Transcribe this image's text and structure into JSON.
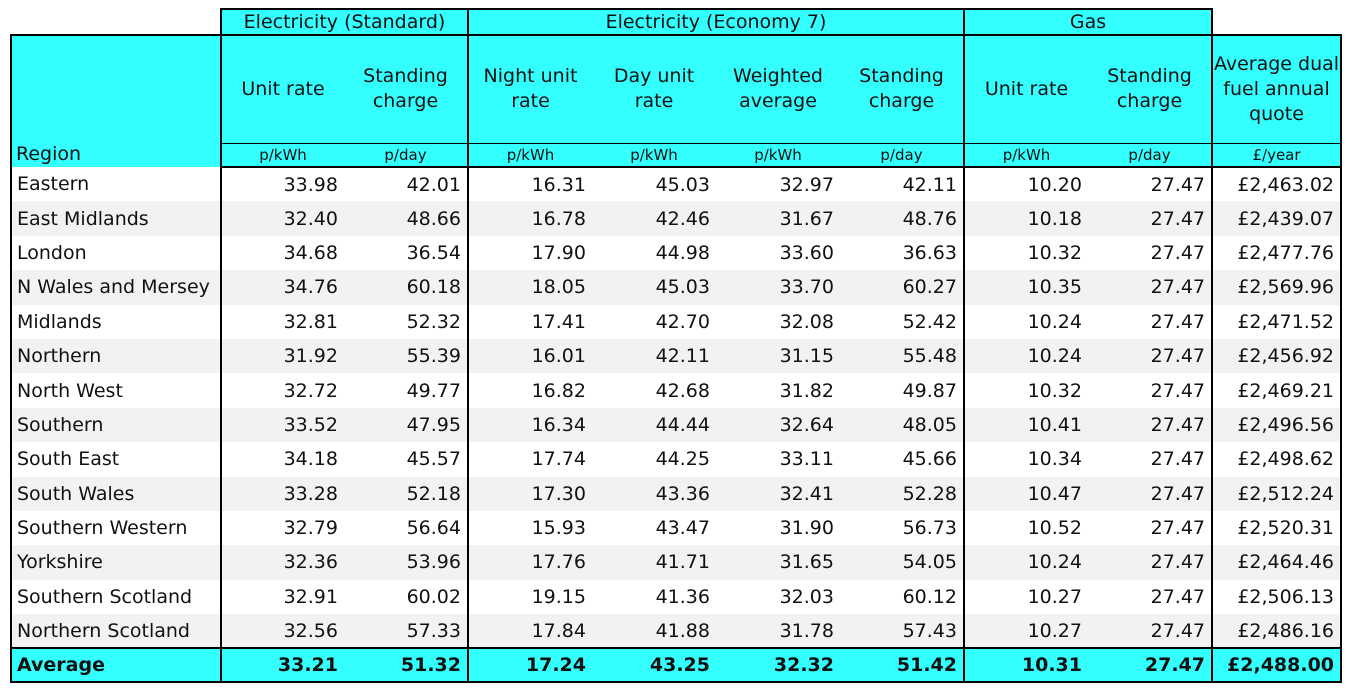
{
  "groups": {
    "standard": "Electricity (Standard)",
    "economy7": "Electricity (Economy 7)",
    "gas": "Gas"
  },
  "columns": {
    "region": "Region",
    "std_unit": "Unit rate",
    "std_standing": "Standing charge",
    "e7_night": "Night unit rate",
    "e7_day": "Day unit rate",
    "e7_weighted": "Weighted average",
    "e7_standing": "Standing charge",
    "gas_unit": "Unit rate",
    "gas_standing": "Standing charge",
    "dual_fuel": "Average dual fuel annual quote"
  },
  "units": [
    "p/kWh",
    "p/day",
    "p/kWh",
    "p/kWh",
    "p/kWh",
    "p/day",
    "p/kWh",
    "p/day",
    "£/year"
  ],
  "rows": [
    [
      "Eastern",
      "33.98",
      "42.01",
      "16.31",
      "45.03",
      "32.97",
      "42.11",
      "10.20",
      "27.47",
      "£2,463.02"
    ],
    [
      "East Midlands",
      "32.40",
      "48.66",
      "16.78",
      "42.46",
      "31.67",
      "48.76",
      "10.18",
      "27.47",
      "£2,439.07"
    ],
    [
      "London",
      "34.68",
      "36.54",
      "17.90",
      "44.98",
      "33.60",
      "36.63",
      "10.32",
      "27.47",
      "£2,477.76"
    ],
    [
      "N Wales and Mersey",
      "34.76",
      "60.18",
      "18.05",
      "45.03",
      "33.70",
      "60.27",
      "10.35",
      "27.47",
      "£2,569.96"
    ],
    [
      "Midlands",
      "32.81",
      "52.32",
      "17.41",
      "42.70",
      "32.08",
      "52.42",
      "10.24",
      "27.47",
      "£2,471.52"
    ],
    [
      "Northern",
      "31.92",
      "55.39",
      "16.01",
      "42.11",
      "31.15",
      "55.48",
      "10.24",
      "27.47",
      "£2,456.92"
    ],
    [
      "North West",
      "32.72",
      "49.77",
      "16.82",
      "42.68",
      "31.82",
      "49.87",
      "10.32",
      "27.47",
      "£2,469.21"
    ],
    [
      "Southern",
      "33.52",
      "47.95",
      "16.34",
      "44.44",
      "32.64",
      "48.05",
      "10.41",
      "27.47",
      "£2,496.56"
    ],
    [
      "South East",
      "34.18",
      "45.57",
      "17.74",
      "44.25",
      "33.11",
      "45.66",
      "10.34",
      "27.47",
      "£2,498.62"
    ],
    [
      "South Wales",
      "33.28",
      "52.18",
      "17.30",
      "43.36",
      "32.41",
      "52.28",
      "10.47",
      "27.47",
      "£2,512.24"
    ],
    [
      "Southern Western",
      "32.79",
      "56.64",
      "15.93",
      "43.47",
      "31.90",
      "56.73",
      "10.52",
      "27.47",
      "£2,520.31"
    ],
    [
      "Yorkshire",
      "32.36",
      "53.96",
      "17.76",
      "41.71",
      "31.65",
      "54.05",
      "10.24",
      "27.47",
      "£2,464.46"
    ],
    [
      "Southern Scotland",
      "32.91",
      "60.02",
      "19.15",
      "41.36",
      "32.03",
      "60.12",
      "10.27",
      "27.47",
      "£2,506.13"
    ],
    [
      "Northern Scotland",
      "32.56",
      "57.33",
      "17.84",
      "41.88",
      "31.78",
      "57.43",
      "10.27",
      "27.47",
      "£2,486.16"
    ]
  ],
  "average": [
    "Average",
    "33.21",
    "51.32",
    "17.24",
    "43.25",
    "32.32",
    "51.42",
    "10.31",
    "27.47",
    "£2,488.00"
  ],
  "colors": {
    "header_fill": "#33ffff",
    "alt_row": "#f2f2f2"
  }
}
